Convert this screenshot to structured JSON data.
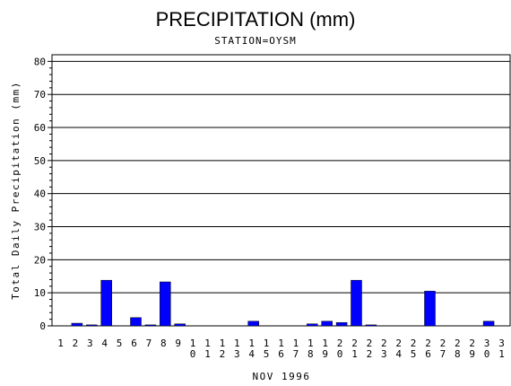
{
  "chart_data": {
    "type": "bar",
    "title": "PRECIPITATION (mm)",
    "subtitle": "STATION=OYSM",
    "xlabel": "NOV 1996",
    "ylabel": "Total Daily Precipitation (mm)",
    "ylim": [
      0,
      82
    ],
    "yticks": [
      0,
      10,
      20,
      30,
      40,
      50,
      60,
      70,
      80
    ],
    "grid": true,
    "bar_color": "#0000ff",
    "categories": [
      "1",
      "2",
      "3",
      "4",
      "5",
      "6",
      "7",
      "8",
      "9",
      "10",
      "11",
      "12",
      "13",
      "14",
      "15",
      "16",
      "17",
      "18",
      "19",
      "20",
      "21",
      "22",
      "23",
      "24",
      "25",
      "26",
      "27",
      "28",
      "29",
      "30",
      "31"
    ],
    "values": [
      0,
      0.8,
      0.3,
      13.8,
      0,
      2.5,
      0.3,
      13.3,
      0.6,
      0,
      0,
      0,
      0,
      1.4,
      0,
      0,
      0,
      0.6,
      1.4,
      1.0,
      13.8,
      0.3,
      0,
      0,
      0,
      10.5,
      0,
      0,
      0,
      1.4,
      0
    ]
  }
}
